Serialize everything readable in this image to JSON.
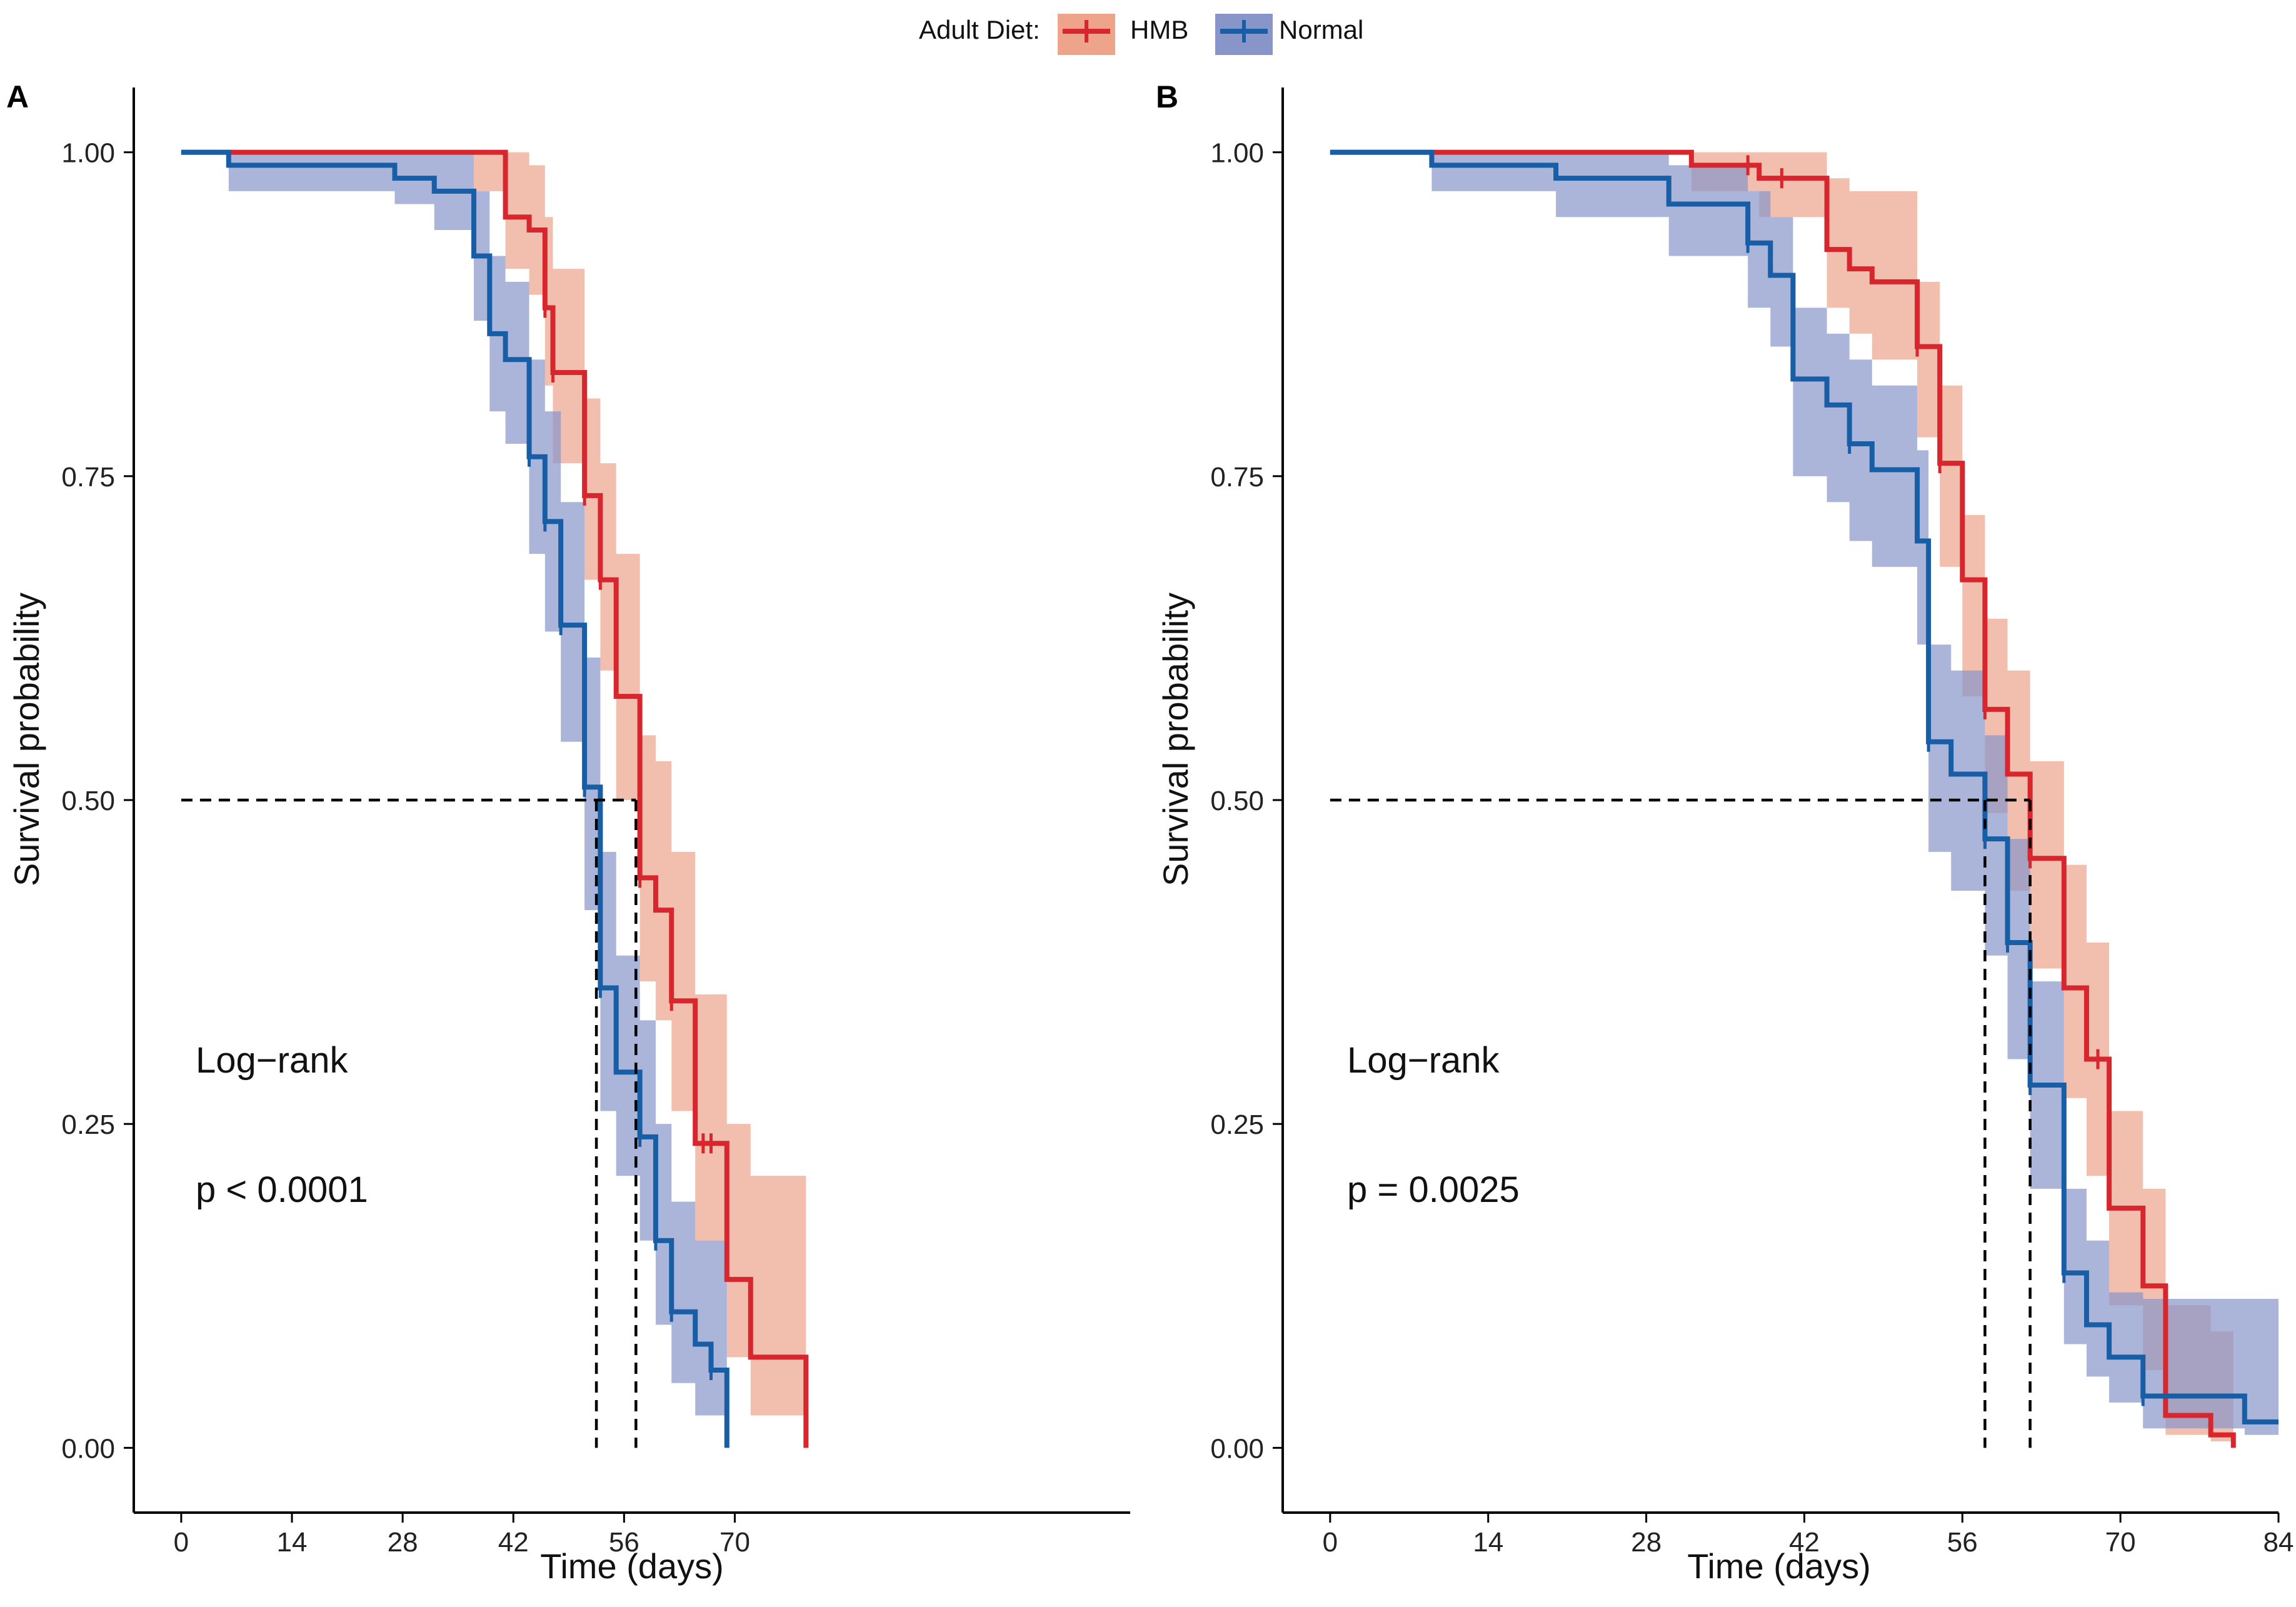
{
  "legend": {
    "title": "Adult Diet:",
    "entries": [
      {
        "label": "HMB",
        "color": "#d7262e",
        "fill": "#eda48b"
      },
      {
        "label": "Normal",
        "color": "#175ea6",
        "fill": "#8795c9"
      }
    ]
  },
  "chart_data": [
    {
      "type": "survival_step",
      "panel": "A",
      "xlabel": "Time (days)",
      "ylabel": "Survival probability",
      "xlim": [
        -6,
        120
      ],
      "ylim": [
        -0.05,
        1.05
      ],
      "xticks": [
        0,
        14,
        28,
        42,
        56,
        70
      ],
      "yticks": [
        0,
        0.25,
        0.5,
        0.75,
        1
      ],
      "ytick_labels": [
        "0.00",
        "0.25",
        "0.50",
        "0.75",
        "1.00"
      ],
      "median_line": {
        "y": 0.5,
        "medians": [
          52.5,
          57.5
        ]
      },
      "annotations": [
        "Log−rank",
        "p < 0.0001"
      ],
      "series": [
        {
          "name": "HMB",
          "curve": [
            [
              0,
              1
            ],
            [
              37,
              1
            ],
            [
              41,
              0.95
            ],
            [
              44,
              0.94
            ],
            [
              46,
              0.88
            ],
            [
              47,
              0.83
            ],
            [
              51,
              0.735
            ],
            [
              53,
              0.67
            ],
            [
              55,
              0.58
            ],
            [
              58,
              0.44
            ],
            [
              60,
              0.415
            ],
            [
              62,
              0.345
            ],
            [
              65,
              0.235
            ],
            [
              69,
              0.13
            ],
            [
              72,
              0.07
            ],
            [
              79,
              0
            ]
          ],
          "band": [
            [
              0,
              1,
              1
            ],
            [
              37,
              0.97,
              1
            ],
            [
              41,
              0.91,
              1
            ],
            [
              44,
              0.89,
              0.99
            ],
            [
              46,
              0.82,
              0.95
            ],
            [
              47,
              0.76,
              0.91
            ],
            [
              51,
              0.67,
              0.81
            ],
            [
              53,
              0.6,
              0.76
            ],
            [
              55,
              0.5,
              0.69
            ],
            [
              58,
              0.36,
              0.55
            ],
            [
              60,
              0.33,
              0.53
            ],
            [
              62,
              0.26,
              0.46
            ],
            [
              65,
              0.16,
              0.35
            ],
            [
              69,
              0.07,
              0.25
            ],
            [
              72,
              0.025,
              0.21
            ],
            [
              79,
              0.025,
              0.21
            ]
          ],
          "censor": [
            [
              46,
              0.88
            ],
            [
              47,
              0.83
            ],
            [
              51,
              0.735
            ],
            [
              53,
              0.67
            ],
            [
              58,
              0.44
            ],
            [
              62,
              0.345
            ],
            [
              66,
              0.235
            ],
            [
              67,
              0.235
            ],
            [
              72,
              0.11
            ]
          ]
        },
        {
          "name": "Normal",
          "curve": [
            [
              0,
              1
            ],
            [
              6,
              0.99
            ],
            [
              27,
              0.98
            ],
            [
              32,
              0.97
            ],
            [
              37,
              0.92
            ],
            [
              39,
              0.86
            ],
            [
              41,
              0.84
            ],
            [
              44,
              0.765
            ],
            [
              46,
              0.715
            ],
            [
              48,
              0.635
            ],
            [
              51,
              0.51
            ],
            [
              53,
              0.355
            ],
            [
              55,
              0.29
            ],
            [
              58,
              0.24
            ],
            [
              60,
              0.16
            ],
            [
              62,
              0.105
            ],
            [
              65,
              0.08
            ],
            [
              67,
              0.06
            ],
            [
              69,
              0
            ]
          ],
          "band": [
            [
              0,
              1,
              1
            ],
            [
              6,
              0.97,
              1
            ],
            [
              27,
              0.96,
              1
            ],
            [
              32,
              0.94,
              1
            ],
            [
              37,
              0.87,
              0.97
            ],
            [
              39,
              0.8,
              0.92
            ],
            [
              41,
              0.775,
              0.9
            ],
            [
              44,
              0.69,
              0.84
            ],
            [
              46,
              0.63,
              0.8
            ],
            [
              48,
              0.545,
              0.73
            ],
            [
              51,
              0.415,
              0.61
            ],
            [
              53,
              0.26,
              0.46
            ],
            [
              55,
              0.21,
              0.38
            ],
            [
              58,
              0.16,
              0.33
            ],
            [
              60,
              0.095,
              0.25
            ],
            [
              62,
              0.05,
              0.19
            ],
            [
              65,
              0.025,
              0.16
            ],
            [
              67,
              0.025,
              0.16
            ],
            [
              69,
              0.025,
              0.16
            ]
          ],
          "censor": [
            [
              44,
              0.765
            ],
            [
              46,
              0.715
            ],
            [
              48,
              0.635
            ],
            [
              51,
              0.51
            ],
            [
              53,
              0.355
            ],
            [
              58,
              0.24
            ],
            [
              60,
              0.16
            ],
            [
              62,
              0.105
            ],
            [
              67,
              0.06
            ]
          ]
        }
      ]
    },
    {
      "type": "survival_step",
      "panel": "B",
      "xlabel": "Time (days)",
      "ylabel": "Survival probability",
      "xlim": [
        -4.2,
        84
      ],
      "ylim": [
        -0.05,
        1.05
      ],
      "xticks": [
        0,
        14,
        28,
        42,
        56,
        70,
        84
      ],
      "yticks": [
        0,
        0.25,
        0.5,
        0.75,
        1
      ],
      "ytick_labels": [
        "0.00",
        "0.25",
        "0.50",
        "0.75",
        "1.00"
      ],
      "median_line": {
        "y": 0.5,
        "medians": [
          58,
          62
        ]
      },
      "annotations": [
        "Log−rank",
        "p = 0.0025"
      ],
      "series": [
        {
          "name": "HMB",
          "curve": [
            [
              0,
              1
            ],
            [
              32,
              0.99
            ],
            [
              38,
              0.98
            ],
            [
              44,
              0.925
            ],
            [
              46,
              0.91
            ],
            [
              48,
              0.9
            ],
            [
              52,
              0.85
            ],
            [
              54,
              0.76
            ],
            [
              56,
              0.67
            ],
            [
              58,
              0.57
            ],
            [
              60,
              0.52
            ],
            [
              62,
              0.455
            ],
            [
              65,
              0.355
            ],
            [
              67,
              0.3
            ],
            [
              69,
              0.185
            ],
            [
              72,
              0.125
            ],
            [
              74,
              0.025
            ],
            [
              78,
              0.01
            ],
            [
              80,
              0
            ]
          ],
          "band": [
            [
              0,
              1,
              1
            ],
            [
              32,
              0.97,
              1
            ],
            [
              38,
              0.95,
              1
            ],
            [
              44,
              0.88,
              0.98
            ],
            [
              46,
              0.86,
              0.97
            ],
            [
              48,
              0.84,
              0.97
            ],
            [
              52,
              0.78,
              0.9
            ],
            [
              54,
              0.68,
              0.82
            ],
            [
              56,
              0.58,
              0.72
            ],
            [
              58,
              0.49,
              0.64
            ],
            [
              60,
              0.43,
              0.6
            ],
            [
              62,
              0.37,
              0.53
            ],
            [
              65,
              0.27,
              0.45
            ],
            [
              67,
              0.21,
              0.39
            ],
            [
              69,
              0.11,
              0.26
            ],
            [
              72,
              0.06,
              0.2
            ],
            [
              74,
              0.01,
              0.11
            ],
            [
              78,
              0.005,
              0.09
            ],
            [
              80,
              0.005,
              0.09
            ]
          ],
          "censor": [
            [
              37,
              0.99
            ],
            [
              40,
              0.98
            ],
            [
              52,
              0.85
            ],
            [
              54,
              0.76
            ],
            [
              58,
              0.57
            ],
            [
              62,
              0.455
            ],
            [
              68,
              0.3
            ]
          ]
        },
        {
          "name": "Normal",
          "curve": [
            [
              0,
              1
            ],
            [
              9,
              0.99
            ],
            [
              20,
              0.98
            ],
            [
              30,
              0.96
            ],
            [
              37,
              0.93
            ],
            [
              39,
              0.905
            ],
            [
              41,
              0.825
            ],
            [
              44,
              0.805
            ],
            [
              46,
              0.775
            ],
            [
              48,
              0.755
            ],
            [
              52,
              0.7
            ],
            [
              53,
              0.545
            ],
            [
              55,
              0.52
            ],
            [
              58,
              0.47
            ],
            [
              60,
              0.39
            ],
            [
              62,
              0.28
            ],
            [
              65,
              0.135
            ],
            [
              67,
              0.095
            ],
            [
              69,
              0.07
            ],
            [
              72,
              0.04
            ],
            [
              81,
              0.02
            ],
            [
              84,
              0.02
            ]
          ],
          "band": [
            [
              0,
              1,
              1
            ],
            [
              9,
              0.97,
              1
            ],
            [
              20,
              0.95,
              1
            ],
            [
              30,
              0.92,
              0.99
            ],
            [
              37,
              0.88,
              0.97
            ],
            [
              39,
              0.85,
              0.95
            ],
            [
              41,
              0.75,
              0.88
            ],
            [
              44,
              0.73,
              0.86
            ],
            [
              46,
              0.7,
              0.84
            ],
            [
              48,
              0.68,
              0.82
            ],
            [
              52,
              0.62,
              0.77
            ],
            [
              53,
              0.46,
              0.62
            ],
            [
              55,
              0.43,
              0.6
            ],
            [
              58,
              0.38,
              0.55
            ],
            [
              60,
              0.3,
              0.47
            ],
            [
              62,
              0.2,
              0.36
            ],
            [
              65,
              0.08,
              0.2
            ],
            [
              67,
              0.055,
              0.16
            ],
            [
              69,
              0.035,
              0.12
            ],
            [
              72,
              0.015,
              0.115
            ],
            [
              81,
              0.01,
              0.115
            ],
            [
              84,
              0.01,
              0.115
            ]
          ],
          "censor": [
            [
              37,
              0.93
            ],
            [
              46,
              0.775
            ],
            [
              53,
              0.545
            ],
            [
              58,
              0.47
            ],
            [
              60,
              0.39
            ],
            [
              62,
              0.28
            ],
            [
              65,
              0.135
            ],
            [
              72,
              0.04
            ]
          ]
        }
      ]
    }
  ]
}
